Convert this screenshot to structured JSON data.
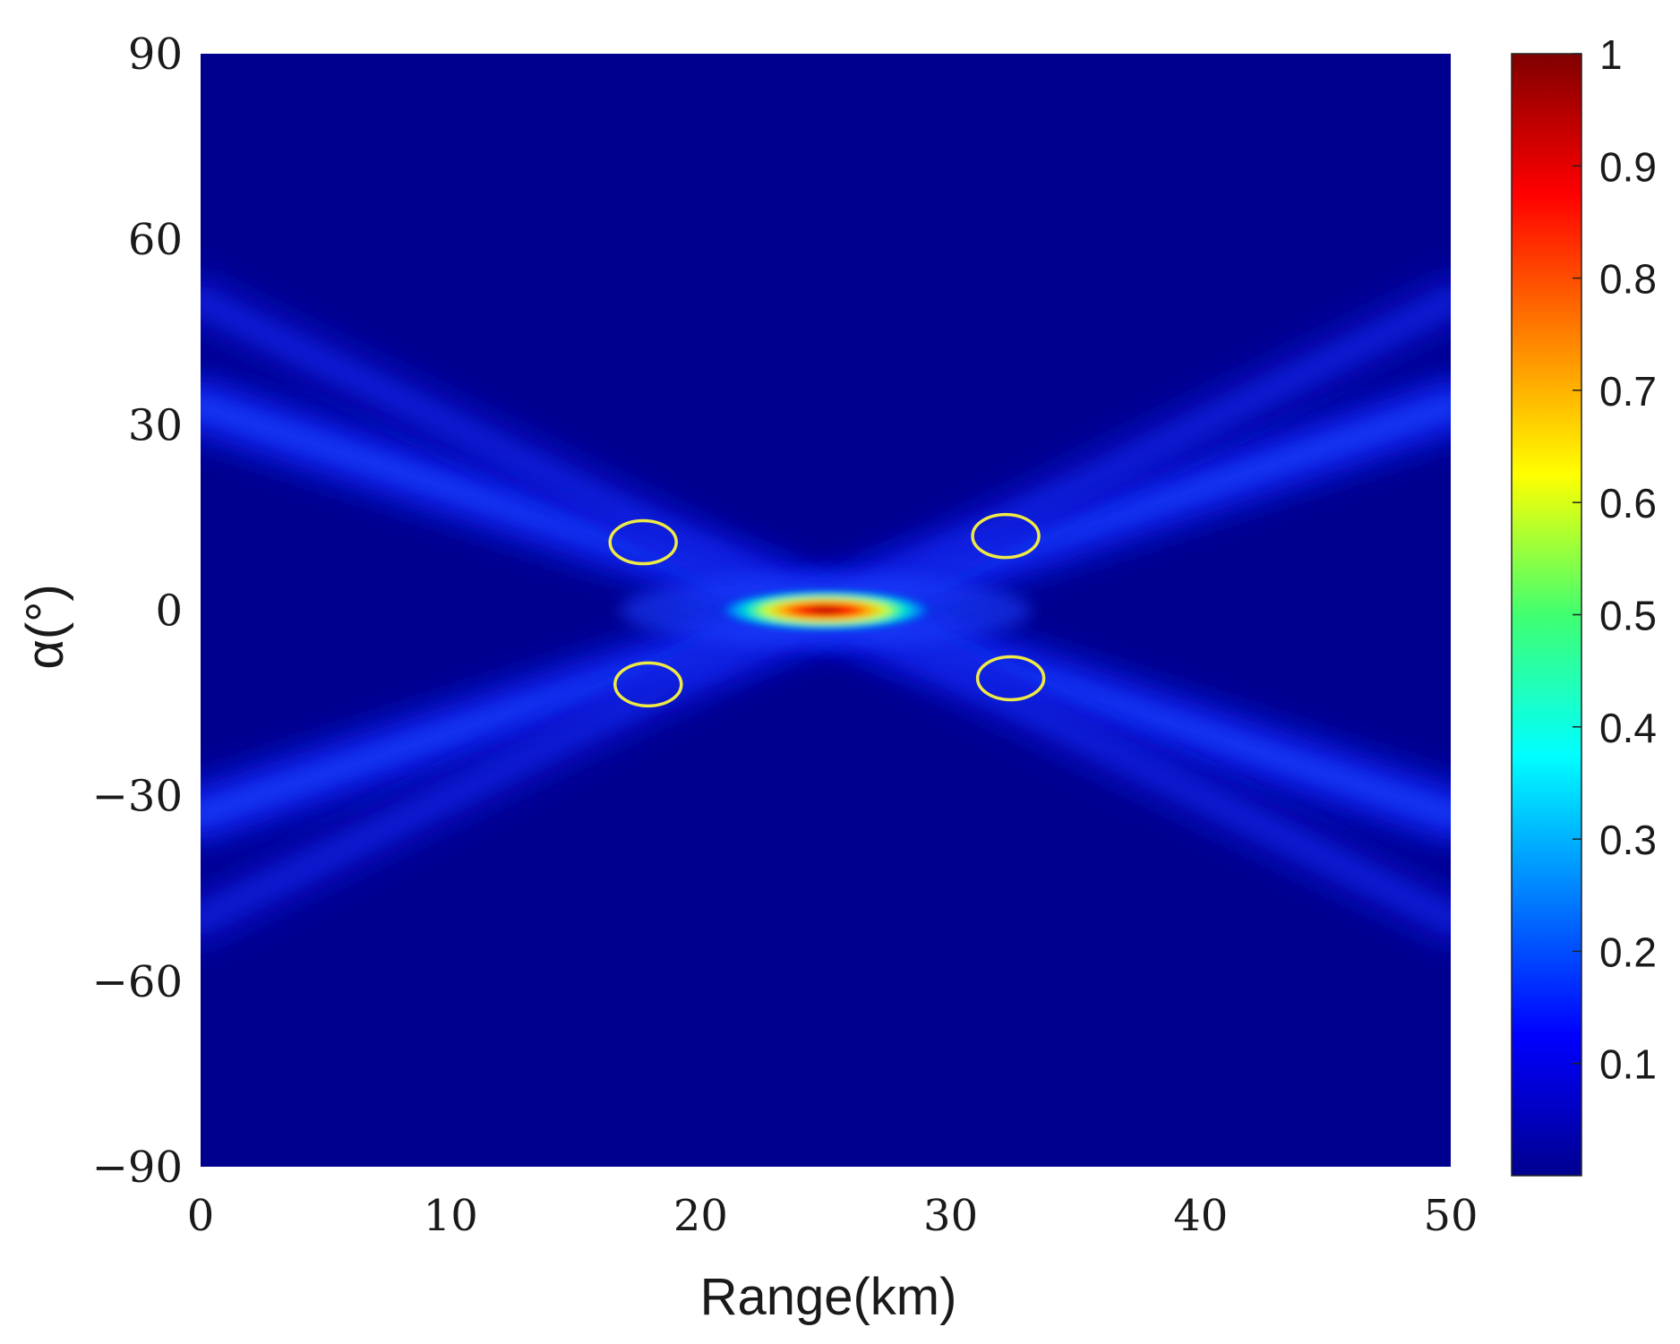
{
  "chart_data": {
    "type": "heatmap",
    "title": "",
    "xlabel": "Range(km)",
    "ylabel": "α(°)",
    "xlim": [
      0,
      50
    ],
    "ylim": [
      -90,
      90
    ],
    "x_ticks": [
      "0",
      "10",
      "20",
      "30",
      "40",
      "50"
    ],
    "y_ticks": [
      "90",
      "60",
      "30",
      "0",
      "−30",
      "−60",
      "−90"
    ],
    "colorbar": {
      "colormap": "jet",
      "range": [
        0,
        1
      ],
      "ticks": [
        "1",
        "0.9",
        "0.8",
        "0.7",
        "0.6",
        "0.5",
        "0.4",
        "0.3",
        "0.2",
        "0.1"
      ]
    },
    "peak": {
      "x": 25,
      "y": 0,
      "value": 1
    },
    "ridges": [
      {
        "from": [
          0,
          33
        ],
        "to": [
          50,
          -33
        ],
        "value": 0.12
      },
      {
        "from": [
          0,
          -33
        ],
        "to": [
          50,
          33
        ],
        "value": 0.12
      },
      {
        "from": [
          0,
          50
        ],
        "to": [
          50,
          -50
        ],
        "value": 0.09
      },
      {
        "from": [
          0,
          -50
        ],
        "to": [
          50,
          50
        ],
        "value": 0.09
      }
    ],
    "annotations": [
      {
        "shape": "ellipse",
        "color": "#f0ea45",
        "center": [
          17.7,
          11
        ]
      },
      {
        "shape": "ellipse",
        "color": "#f0ea45",
        "center": [
          32.2,
          12
        ]
      },
      {
        "shape": "ellipse",
        "color": "#f0ea45",
        "center": [
          17.9,
          -12
        ]
      },
      {
        "shape": "ellipse",
        "color": "#f0ea45",
        "center": [
          32.4,
          -11
        ]
      }
    ]
  }
}
